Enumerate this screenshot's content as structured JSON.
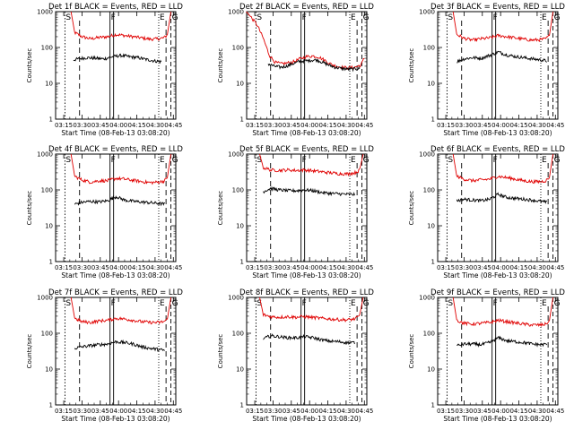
{
  "chart_data": [
    {
      "type": "line",
      "title": "Det 1f BLACK = Events, RED = LLD",
      "xlabel": "Start Time (08-Feb-13 03:08:20)",
      "ylabel": "Counts/sec",
      "ylog": true,
      "ylim": [
        1,
        1000
      ],
      "x_ticks": [
        "03:15",
        "03:30",
        "03:45",
        "04:00",
        "04:15",
        "04:30",
        "04:45"
      ],
      "y_ticks": [
        "1",
        "10",
        "100",
        "1000"
      ],
      "markers": [
        {
          "label": "S",
          "t": "03:16"
        },
        {
          "label": "F",
          "t": "03:53"
        },
        {
          "label": "E",
          "t": "04:33"
        },
        {
          "label": "G",
          "t": "04:43"
        }
      ],
      "series": [
        {
          "name": "RED = LLD",
          "color": "#e00000",
          "t": [
            "03:21",
            "03:24",
            "03:30",
            "03:37",
            "03:44",
            "03:51",
            "03:58",
            "04:05",
            "04:12",
            "04:19",
            "04:26",
            "04:33",
            "04:37",
            "04:40",
            "04:43"
          ],
          "y": [
            1000,
            260,
            200,
            175,
            190,
            200,
            230,
            215,
            200,
            185,
            170,
            175,
            185,
            220,
            1000
          ]
        },
        {
          "name": "BLACK = Events",
          "color": "#000000",
          "t": [
            "03:23",
            "03:27",
            "03:34",
            "03:41",
            "03:48",
            "03:55",
            "04:02",
            "04:09",
            "04:16",
            "04:23",
            "04:30",
            "04:35"
          ],
          "y": [
            45,
            48,
            52,
            50,
            48,
            55,
            60,
            55,
            52,
            46,
            42,
            40
          ]
        }
      ]
    },
    {
      "type": "line",
      "title": "Det 2f BLACK = Events, RED = LLD",
      "xlabel": "Start Time (08-Feb-13 03:08:20)",
      "ylabel": "Counts/sec",
      "ylog": true,
      "ylim": [
        1,
        1000
      ],
      "x_ticks": [
        "03:15",
        "03:30",
        "03:45",
        "04:00",
        "04:15",
        "04:30",
        "04:45"
      ],
      "y_ticks": [
        "1",
        "10",
        "100",
        "1000"
      ],
      "markers": [
        {
          "label": "S",
          "t": "03:16"
        },
        {
          "label": "F",
          "t": "03:53"
        },
        {
          "label": "E",
          "t": "04:33"
        },
        {
          "label": "G",
          "t": "04:43"
        }
      ],
      "series": [
        {
          "name": "RED = LLD",
          "color": "#e00000",
          "t": [
            "03:08",
            "03:12",
            "03:17",
            "03:22",
            "03:27",
            "03:32",
            "03:37",
            "03:42",
            "03:47",
            "03:52",
            "03:57",
            "04:02",
            "04:07",
            "04:12",
            "04:17",
            "04:22",
            "04:27",
            "04:32",
            "04:37",
            "04:42",
            "04:45"
          ],
          "y": [
            1000,
            700,
            420,
            180,
            60,
            38,
            35,
            37,
            40,
            48,
            55,
            58,
            55,
            45,
            35,
            30,
            28,
            27,
            28,
            32,
            50
          ]
        },
        {
          "name": "BLACK = Events",
          "color": "#000000",
          "t": [
            "03:26",
            "03:31",
            "03:36",
            "03:41",
            "03:46",
            "03:51",
            "03:56",
            "04:01",
            "04:06",
            "04:11",
            "04:16",
            "04:21",
            "04:26",
            "04:31",
            "04:36",
            "04:41"
          ],
          "y": [
            35,
            30,
            28,
            30,
            35,
            40,
            42,
            44,
            45,
            38,
            32,
            28,
            26,
            25,
            25,
            26
          ]
        }
      ]
    },
    {
      "type": "line",
      "title": "Det 3f BLACK = Events, RED = LLD",
      "xlabel": "Start Time (08-Feb-13 03:08:20)",
      "ylabel": "Counts/sec",
      "ylog": true,
      "ylim": [
        1,
        1000
      ],
      "x_ticks": [
        "03:15",
        "03:30",
        "03:45",
        "04:00",
        "04:15",
        "04:30",
        "04:45"
      ],
      "y_ticks": [
        "1",
        "10",
        "100",
        "1000"
      ],
      "markers": [
        {
          "label": "S",
          "t": "03:16"
        },
        {
          "label": "F",
          "t": "03:53"
        },
        {
          "label": "E",
          "t": "04:33"
        },
        {
          "label": "G",
          "t": "04:43"
        }
      ],
      "series": [
        {
          "name": "RED = LLD",
          "color": "#e00000",
          "t": [
            "03:21",
            "03:24",
            "03:30",
            "03:37",
            "03:44",
            "03:51",
            "03:58",
            "04:05",
            "04:12",
            "04:19",
            "04:26",
            "04:33",
            "04:37",
            "04:40",
            "04:43"
          ],
          "y": [
            1000,
            230,
            180,
            160,
            175,
            185,
            215,
            200,
            185,
            170,
            160,
            165,
            175,
            210,
            1000
          ]
        },
        {
          "name": "BLACK = Events",
          "color": "#000000",
          "t": [
            "03:24",
            "03:30",
            "03:37",
            "03:44",
            "03:51",
            "03:58",
            "04:05",
            "04:12",
            "04:19",
            "04:26",
            "04:33",
            "04:38"
          ],
          "y": [
            40,
            48,
            52,
            50,
            60,
            75,
            62,
            56,
            52,
            48,
            45,
            42
          ]
        }
      ]
    },
    {
      "type": "line",
      "title": "Det 4f BLACK = Events, RED = LLD",
      "xlabel": "Start Time (08-Feb-13 03:08:20)",
      "ylabel": "Counts/sec",
      "ylog": true,
      "ylim": [
        1,
        1000
      ],
      "x_ticks": [
        "03:15",
        "03:30",
        "03:45",
        "04:00",
        "04:15",
        "04:30",
        "04:45"
      ],
      "y_ticks": [
        "1",
        "10",
        "100",
        "1000"
      ],
      "markers": [
        {
          "label": "S",
          "t": "03:16"
        },
        {
          "label": "F",
          "t": "03:53"
        },
        {
          "label": "E",
          "t": "04:33"
        },
        {
          "label": "G",
          "t": "04:43"
        }
      ],
      "series": [
        {
          "name": "RED = LLD",
          "color": "#e00000",
          "t": [
            "03:21",
            "03:24",
            "03:30",
            "03:37",
            "03:44",
            "03:51",
            "03:58",
            "04:05",
            "04:12",
            "04:19",
            "04:26",
            "04:33",
            "04:37",
            "04:40",
            "04:43"
          ],
          "y": [
            1000,
            240,
            190,
            165,
            180,
            180,
            210,
            200,
            185,
            170,
            160,
            165,
            175,
            215,
            1000
          ]
        },
        {
          "name": "BLACK = Events",
          "color": "#000000",
          "t": [
            "03:24",
            "03:30",
            "03:37",
            "03:44",
            "03:51",
            "03:58",
            "04:05",
            "04:12",
            "04:19",
            "04:26",
            "04:33",
            "04:38"
          ],
          "y": [
            40,
            45,
            48,
            46,
            50,
            65,
            52,
            48,
            46,
            44,
            42,
            40
          ]
        }
      ]
    },
    {
      "type": "line",
      "title": "Det 5f BLACK = Events, RED = LLD",
      "xlabel": "Start Time (08-Feb-13 03:08:20)",
      "ylabel": "Counts/sec",
      "ylog": true,
      "ylim": [
        1,
        1000
      ],
      "x_ticks": [
        "03:15",
        "03:30",
        "03:45",
        "04:00",
        "04:15",
        "04:30",
        "04:45"
      ],
      "y_ticks": [
        "1",
        "10",
        "100",
        "1000"
      ],
      "markers": [
        {
          "label": "S",
          "t": "03:16"
        },
        {
          "label": "F",
          "t": "03:53"
        },
        {
          "label": "E",
          "t": "04:33"
        },
        {
          "label": "G",
          "t": "04:43"
        }
      ],
      "series": [
        {
          "name": "RED = LLD",
          "color": "#e00000",
          "t": [
            "03:19",
            "03:22",
            "03:28",
            "03:35",
            "03:42",
            "03:49",
            "03:56",
            "04:03",
            "04:10",
            "04:17",
            "04:24",
            "04:31",
            "04:37",
            "04:41",
            "04:44"
          ],
          "y": [
            1000,
            420,
            360,
            350,
            360,
            350,
            360,
            340,
            320,
            300,
            285,
            280,
            300,
            350,
            1000
          ]
        },
        {
          "name": "BLACK = Events",
          "color": "#000000",
          "t": [
            "03:22",
            "03:28",
            "03:35",
            "03:42",
            "03:49",
            "03:56",
            "04:03",
            "04:10",
            "04:17",
            "04:24",
            "04:31",
            "04:37"
          ],
          "y": [
            90,
            110,
            100,
            95,
            95,
            100,
            95,
            85,
            80,
            78,
            75,
            75
          ]
        }
      ]
    },
    {
      "type": "line",
      "title": "Det 6f BLACK = Events, RED = LLD",
      "xlabel": "Start Time (08-Feb-13 03:08:20)",
      "ylabel": "Counts/sec",
      "ylog": true,
      "ylim": [
        1,
        1000
      ],
      "x_ticks": [
        "03:15",
        "03:30",
        "03:45",
        "04:00",
        "04:15",
        "04:30",
        "04:45"
      ],
      "y_ticks": [
        "1",
        "10",
        "100",
        "1000"
      ],
      "markers": [
        {
          "label": "S",
          "t": "03:16"
        },
        {
          "label": "F",
          "t": "03:53"
        },
        {
          "label": "E",
          "t": "04:33"
        },
        {
          "label": "G",
          "t": "04:43"
        }
      ],
      "series": [
        {
          "name": "RED = LLD",
          "color": "#e00000",
          "t": [
            "03:21",
            "03:24",
            "03:30",
            "03:37",
            "03:44",
            "03:51",
            "03:58",
            "04:05",
            "04:12",
            "04:19",
            "04:26",
            "04:33",
            "04:37",
            "04:40",
            "04:43"
          ],
          "y": [
            1000,
            240,
            200,
            180,
            190,
            200,
            240,
            220,
            200,
            180,
            170,
            170,
            180,
            215,
            1000
          ]
        },
        {
          "name": "BLACK = Events",
          "color": "#000000",
          "t": [
            "03:24",
            "03:30",
            "03:37",
            "03:44",
            "03:51",
            "03:58",
            "04:05",
            "04:12",
            "04:19",
            "04:26",
            "04:33",
            "04:38"
          ],
          "y": [
            50,
            55,
            52,
            50,
            55,
            75,
            62,
            58,
            55,
            52,
            48,
            45
          ]
        }
      ]
    },
    {
      "type": "line",
      "title": "Det 7f BLACK = Events, RED = LLD",
      "xlabel": "Start Time (08-Feb-13 03:08:20)",
      "ylabel": "Counts/sec",
      "ylog": true,
      "ylim": [
        1,
        1000
      ],
      "x_ticks": [
        "03:15",
        "03:30",
        "03:45",
        "04:00",
        "04:15",
        "04:30",
        "04:45"
      ],
      "y_ticks": [
        "1",
        "10",
        "100",
        "1000"
      ],
      "markers": [
        {
          "label": "S",
          "t": "03:16"
        },
        {
          "label": "F",
          "t": "03:53"
        },
        {
          "label": "E",
          "t": "04:33"
        },
        {
          "label": "G",
          "t": "04:43"
        }
      ],
      "series": [
        {
          "name": "RED = LLD",
          "color": "#e00000",
          "t": [
            "03:21",
            "03:24",
            "03:30",
            "03:37",
            "03:44",
            "03:51",
            "03:58",
            "04:05",
            "04:12",
            "04:19",
            "04:26",
            "04:33",
            "04:37",
            "04:40",
            "04:43"
          ],
          "y": [
            1000,
            260,
            210,
            200,
            220,
            230,
            260,
            250,
            230,
            210,
            200,
            200,
            210,
            240,
            1000
          ]
        },
        {
          "name": "BLACK = Events",
          "color": "#000000",
          "t": [
            "03:24",
            "03:30",
            "03:37",
            "03:44",
            "03:51",
            "03:58",
            "04:05",
            "04:12",
            "04:19",
            "04:26",
            "04:33",
            "04:38"
          ],
          "y": [
            38,
            42,
            45,
            48,
            50,
            58,
            55,
            50,
            42,
            38,
            35,
            33
          ]
        }
      ]
    },
    {
      "type": "line",
      "title": "Det 8f BLACK = Events, RED = LLD",
      "xlabel": "Start Time (08-Feb-13 03:08:20)",
      "ylabel": "Counts/sec",
      "ylog": true,
      "ylim": [
        1,
        1000
      ],
      "x_ticks": [
        "03:15",
        "03:30",
        "03:45",
        "04:00",
        "04:15",
        "04:30",
        "04:45"
      ],
      "y_ticks": [
        "1",
        "10",
        "100",
        "1000"
      ],
      "markers": [
        {
          "label": "S",
          "t": "03:16"
        },
        {
          "label": "F",
          "t": "03:53"
        },
        {
          "label": "E",
          "t": "04:33"
        },
        {
          "label": "G",
          "t": "04:43"
        }
      ],
      "series": [
        {
          "name": "RED = LLD",
          "color": "#e00000",
          "t": [
            "03:19",
            "03:22",
            "03:28",
            "03:35",
            "03:42",
            "03:49",
            "03:56",
            "04:03",
            "04:10",
            "04:17",
            "04:24",
            "04:31",
            "04:37",
            "04:41",
            "04:44"
          ],
          "y": [
            1000,
            330,
            290,
            280,
            290,
            280,
            290,
            275,
            260,
            250,
            240,
            235,
            250,
            300,
            1000
          ]
        },
        {
          "name": "BLACK = Events",
          "color": "#000000",
          "t": [
            "03:22",
            "03:28",
            "03:35",
            "03:42",
            "03:49",
            "03:56",
            "04:03",
            "04:10",
            "04:17",
            "04:24",
            "04:31",
            "04:37"
          ],
          "y": [
            70,
            85,
            80,
            75,
            75,
            80,
            75,
            65,
            60,
            58,
            55,
            55
          ]
        }
      ]
    },
    {
      "type": "line",
      "title": "Det 9f BLACK = Events, RED = LLD",
      "xlabel": "Start Time (08-Feb-13 03:08:20)",
      "ylabel": "Counts/sec",
      "ylog": true,
      "ylim": [
        1,
        1000
      ],
      "x_ticks": [
        "03:15",
        "03:30",
        "03:45",
        "04:00",
        "04:15",
        "04:30",
        "04:45"
      ],
      "y_ticks": [
        "1",
        "10",
        "100",
        "1000"
      ],
      "markers": [
        {
          "label": "S",
          "t": "03:16"
        },
        {
          "label": "F",
          "t": "03:53"
        },
        {
          "label": "E",
          "t": "04:33"
        },
        {
          "label": "G",
          "t": "04:43"
        }
      ],
      "series": [
        {
          "name": "RED = LLD",
          "color": "#e00000",
          "t": [
            "03:21",
            "03:24",
            "03:30",
            "03:37",
            "03:44",
            "03:51",
            "03:58",
            "04:05",
            "04:12",
            "04:19",
            "04:26",
            "04:33",
            "04:37",
            "04:40",
            "04:43"
          ],
          "y": [
            1000,
            230,
            190,
            180,
            190,
            200,
            230,
            210,
            195,
            180,
            170,
            170,
            180,
            220,
            1000
          ]
        },
        {
          "name": "BLACK = Events",
          "color": "#000000",
          "t": [
            "03:24",
            "03:30",
            "03:37",
            "03:44",
            "03:51",
            "03:58",
            "04:05",
            "04:12",
            "04:19",
            "04:26",
            "04:33",
            "04:38"
          ],
          "y": [
            45,
            50,
            50,
            48,
            55,
            75,
            62,
            58,
            55,
            50,
            48,
            50
          ]
        }
      ]
    }
  ]
}
